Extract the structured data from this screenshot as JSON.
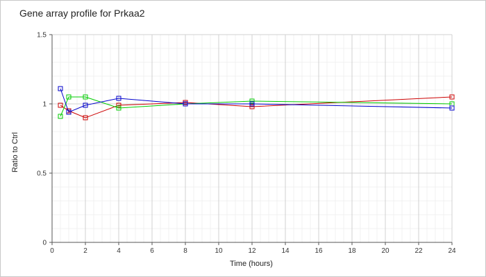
{
  "chart_data": {
    "type": "line",
    "title": "Gene array profile for Prkaa2",
    "xlabel": "Time (hours)",
    "ylabel": "Ratio to Ctrl",
    "xlim": [
      0,
      24
    ],
    "ylim": [
      0,
      1.5
    ],
    "x_ticks": [
      "0",
      "2",
      "4",
      "6",
      "8",
      "10",
      "12",
      "14",
      "16",
      "18",
      "20",
      "22",
      "24"
    ],
    "y_ticks": [
      "0",
      "0.5",
      "1",
      "1.5"
    ],
    "grid": true,
    "legend": "none",
    "marker": "open-square",
    "series": [
      {
        "color": "#cc0000",
        "x": [
          0.5,
          1,
          2,
          4,
          8,
          12,
          24
        ],
        "y": [
          0.99,
          0.95,
          0.9,
          0.99,
          1.01,
          0.98,
          1.05
        ]
      },
      {
        "color": "#00cc00",
        "x": [
          0.5,
          1,
          2,
          4,
          8,
          12,
          24
        ],
        "y": [
          0.91,
          1.05,
          1.05,
          0.97,
          1.0,
          1.02,
          1.0
        ]
      },
      {
        "color": "#0000cc",
        "x": [
          0.5,
          1,
          2,
          4,
          8,
          12,
          24
        ],
        "y": [
          1.11,
          0.94,
          0.99,
          1.04,
          1.0,
          1.0,
          0.97
        ]
      }
    ]
  }
}
